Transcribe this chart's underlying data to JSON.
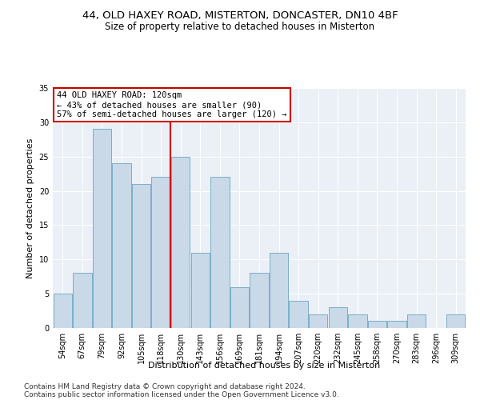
{
  "title1": "44, OLD HAXEY ROAD, MISTERTON, DONCASTER, DN10 4BF",
  "title2": "Size of property relative to detached houses in Misterton",
  "xlabel": "Distribution of detached houses by size in Misterton",
  "ylabel": "Number of detached properties",
  "footnote1": "Contains HM Land Registry data © Crown copyright and database right 2024.",
  "footnote2": "Contains public sector information licensed under the Open Government Licence v3.0.",
  "bar_labels": [
    "54sqm",
    "67sqm",
    "79sqm",
    "92sqm",
    "105sqm",
    "118sqm",
    "130sqm",
    "143sqm",
    "156sqm",
    "169sqm",
    "181sqm",
    "194sqm",
    "207sqm",
    "220sqm",
    "232sqm",
    "245sqm",
    "258sqm",
    "270sqm",
    "283sqm",
    "296sqm",
    "309sqm"
  ],
  "bar_values": [
    5,
    8,
    29,
    24,
    21,
    22,
    25,
    11,
    22,
    6,
    8,
    11,
    4,
    2,
    3,
    2,
    1,
    1,
    2,
    0,
    2
  ],
  "bar_color": "#c9d9e8",
  "bar_edge_color": "#7aafc8",
  "vline_x_index": 5.5,
  "annotation_line1": "44 OLD HAXEY ROAD: 120sqm",
  "annotation_line2": "← 43% of detached houses are smaller (90)",
  "annotation_line3": "57% of semi-detached houses are larger (120) →",
  "ylim": [
    0,
    35
  ],
  "yticks": [
    0,
    5,
    10,
    15,
    20,
    25,
    30,
    35
  ],
  "bg_color": "#eaf0f6",
  "grid_color": "#ffffff",
  "vline_color": "#cc0000",
  "annotation_border_color": "#cc0000",
  "title1_fontsize": 9.5,
  "title2_fontsize": 8.5,
  "xlabel_fontsize": 8,
  "ylabel_fontsize": 8,
  "tick_fontsize": 7,
  "annotation_fontsize": 7.5,
  "footnote_fontsize": 6.5
}
